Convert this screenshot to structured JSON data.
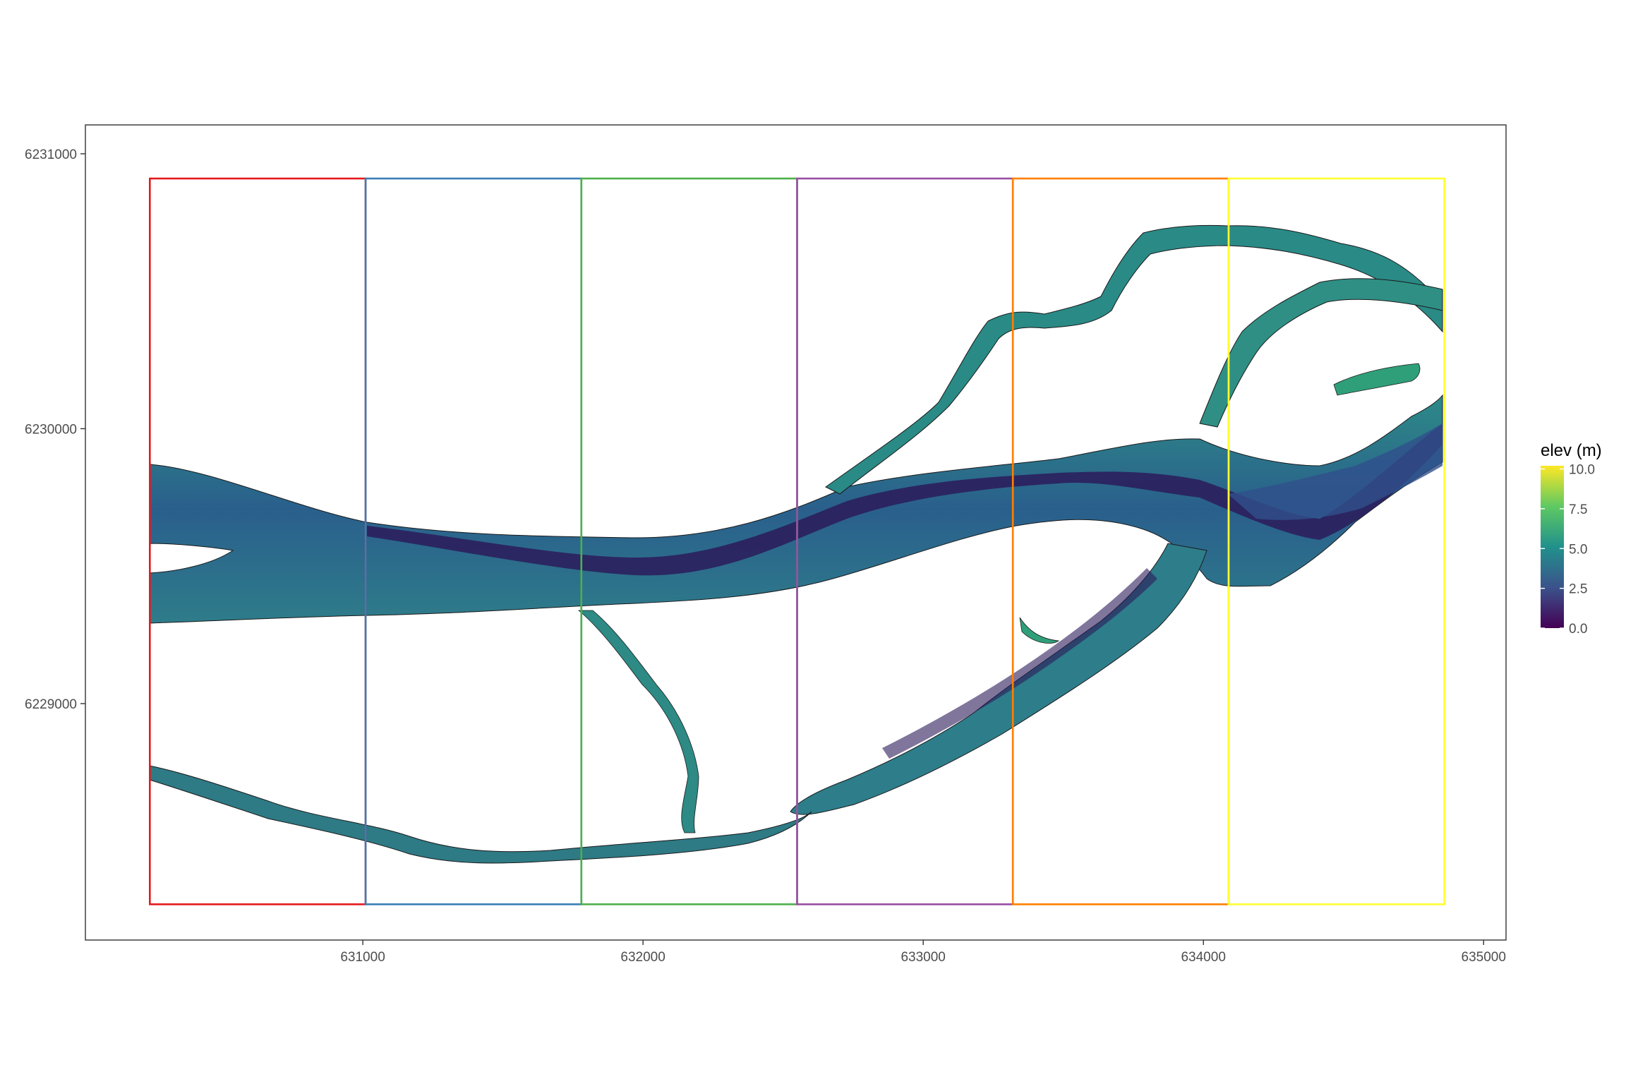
{
  "map": {
    "x_axis": {
      "ticks": [
        {
          "value": 631000,
          "label": "631000"
        },
        {
          "value": 632000,
          "label": "632000"
        },
        {
          "value": 633000,
          "label": "633000"
        },
        {
          "value": 634000,
          "label": "634000"
        },
        {
          "value": 635000,
          "label": "635000"
        }
      ],
      "range": [
        630010,
        635080
      ]
    },
    "y_axis": {
      "ticks": [
        {
          "value": 6229000,
          "label": "6229000"
        },
        {
          "value": 6230000,
          "label": "6230000"
        },
        {
          "value": 6231000,
          "label": "6231000"
        }
      ],
      "range": [
        6228140,
        6231105
      ]
    },
    "tile_extent": {
      "y_min": 6228270,
      "y_max": 6230910
    },
    "tiles": [
      {
        "x_min": 630240,
        "x_max": 631010,
        "color": "#e41a1c"
      },
      {
        "x_min": 631010,
        "x_max": 631780,
        "color": "#377eb8"
      },
      {
        "x_min": 631780,
        "x_max": 632550,
        "color": "#4daf4a"
      },
      {
        "x_min": 632550,
        "x_max": 633320,
        "color": "#984ea3"
      },
      {
        "x_min": 633320,
        "x_max": 634090,
        "color": "#ff7f00"
      },
      {
        "x_min": 634090,
        "x_max": 634860,
        "color": "#ffff33"
      }
    ],
    "legend": {
      "title": "elev (m)",
      "labels": [
        "10.0",
        "7.5",
        "5.0",
        "2.5",
        "0.0"
      ],
      "values": [
        10.0,
        7.5,
        5.0,
        2.5,
        0.0
      ],
      "range": [
        0,
        10.2
      ],
      "colors": [
        "#440154",
        "#3b528b",
        "#21918c",
        "#5ec962",
        "#fde725"
      ]
    },
    "river_colors": {
      "deep": "#2b1b5a",
      "mid": "#31508c",
      "main": "#2a7d8a",
      "shallow": "#2f9f7a"
    }
  }
}
